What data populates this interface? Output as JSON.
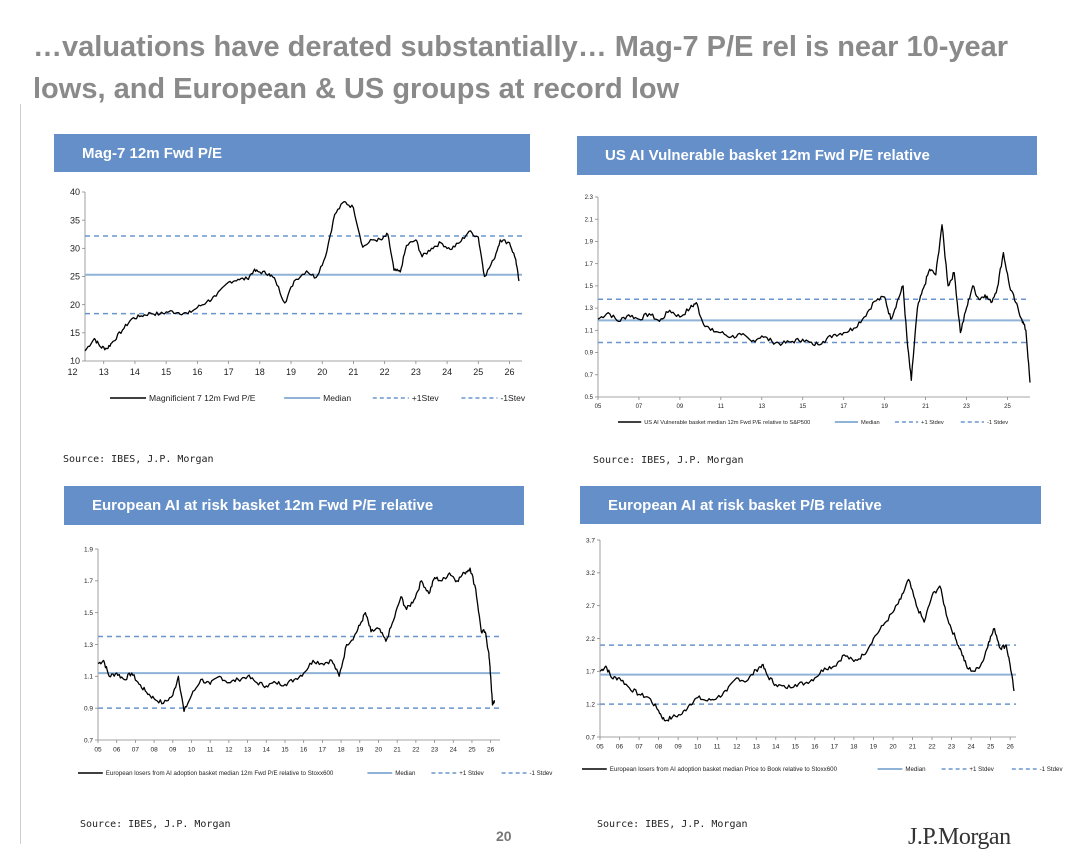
{
  "page": {
    "title": "…valuations have derated substantially… Mag-7 P/E rel is near 10-year lows, and European & US groups at record low",
    "page_number": "20",
    "logo": "J.P.Morgan"
  },
  "colors": {
    "header_bg": "#658fc8",
    "median": "#8fb3d6",
    "stdev": "#6a95cc",
    "line": "#000000"
  },
  "chart_data": [
    {
      "id": "c1",
      "type": "line",
      "header": "Mag-7 12m Fwd P/E",
      "source": "Source: IBES, J.P. Morgan",
      "xlim": [
        12.4,
        26.4
      ],
      "ylim": [
        10,
        40
      ],
      "xticks": [
        12,
        13,
        14,
        15,
        16,
        17,
        18,
        19,
        20,
        21,
        22,
        23,
        24,
        25,
        26
      ],
      "xtick_labels": [
        "12",
        "13",
        "14",
        "15",
        "16",
        "17",
        "18",
        "19",
        "20",
        "21",
        "22",
        "23",
        "24",
        "25",
        "26"
      ],
      "yticks": [
        10,
        15,
        20,
        25,
        30,
        35,
        40
      ],
      "ytick_labels": [
        "10",
        "15",
        "20",
        "25",
        "30",
        "35",
        "40"
      ],
      "median": 25.3,
      "plus1": 32.2,
      "minus1": 18.4,
      "legend": [
        "Magnificient 7 12m Fwd P/E",
        "Median",
        "+1Stev",
        "-1Stev"
      ],
      "series": [
        [
          12.4,
          11.8
        ],
        [
          12.7,
          14
        ],
        [
          12.9,
          12.5
        ],
        [
          13.1,
          12.2
        ],
        [
          13.3,
          13.5
        ],
        [
          13.6,
          15.5
        ],
        [
          13.9,
          17.5
        ],
        [
          14.2,
          18
        ],
        [
          14.5,
          18.5
        ],
        [
          14.8,
          18.3
        ],
        [
          15.1,
          18.8
        ],
        [
          15.4,
          18.6
        ],
        [
          15.7,
          18.4
        ],
        [
          16.0,
          19.5
        ],
        [
          16.3,
          20.5
        ],
        [
          16.6,
          21.5
        ],
        [
          17.0,
          24
        ],
        [
          17.3,
          24.5
        ],
        [
          17.6,
          24.6
        ],
        [
          17.8,
          26
        ],
        [
          18.0,
          25.8
        ],
        [
          18.3,
          25.5
        ],
        [
          18.5,
          24.3
        ],
        [
          18.8,
          20.3
        ],
        [
          19.1,
          24.2
        ],
        [
          19.5,
          26
        ],
        [
          19.8,
          24.8
        ],
        [
          20.1,
          28.5
        ],
        [
          20.4,
          36
        ],
        [
          20.7,
          38.3
        ],
        [
          21.0,
          37.2
        ],
        [
          21.3,
          30.2
        ],
        [
          21.6,
          31.5
        ],
        [
          21.9,
          31.5
        ],
        [
          22.1,
          32.5
        ],
        [
          22.3,
          26.1
        ],
        [
          22.5,
          25.8
        ],
        [
          22.7,
          30.5
        ],
        [
          23.0,
          31.5
        ],
        [
          23.2,
          28.5
        ],
        [
          23.5,
          30
        ],
        [
          23.8,
          31
        ],
        [
          24.1,
          29.8
        ],
        [
          24.4,
          31
        ],
        [
          24.7,
          33
        ],
        [
          25.0,
          32
        ],
        [
          25.2,
          25
        ],
        [
          25.5,
          28
        ],
        [
          25.7,
          31.5
        ],
        [
          26.0,
          31
        ],
        [
          26.2,
          28
        ],
        [
          26.3,
          24.2
        ]
      ]
    },
    {
      "id": "c2",
      "type": "line",
      "header": "US AI Vulnerable basket 12m Fwd P/E relative",
      "source": "Source: IBES, J.P. Morgan",
      "xlim": [
        5,
        26.1
      ],
      "ylim": [
        0.5,
        2.3
      ],
      "xticks": [
        5,
        7,
        9,
        11,
        13,
        15,
        17,
        19,
        21,
        23,
        25
      ],
      "xtick_labels": [
        "05",
        "07",
        "09",
        "11",
        "13",
        "15",
        "17",
        "19",
        "21",
        "23",
        "25"
      ],
      "yticks": [
        0.5,
        0.7,
        0.9,
        1.1,
        1.3,
        1.5,
        1.7,
        1.9,
        2.1,
        2.3
      ],
      "ytick_labels": [
        "0.5",
        "0.7",
        "0.9",
        "1.1",
        "1.3",
        "1.5",
        "1.7",
        "1.9",
        "2.1",
        "2.3"
      ],
      "median": 1.19,
      "plus1": 1.38,
      "minus1": 0.99,
      "legend": [
        "US AI Vulnerable basket median 12m Fwd P/E relative to S&P500",
        "Median",
        "+1 Stdev",
        "-1 Stdev"
      ],
      "series": [
        [
          5.0,
          1.2
        ],
        [
          5.5,
          1.26
        ],
        [
          6.0,
          1.18
        ],
        [
          6.5,
          1.24
        ],
        [
          7.0,
          1.2
        ],
        [
          7.5,
          1.25
        ],
        [
          8.0,
          1.18
        ],
        [
          8.5,
          1.28
        ],
        [
          9.0,
          1.22
        ],
        [
          9.5,
          1.3
        ],
        [
          9.8,
          1.35
        ],
        [
          10.1,
          1.18
        ],
        [
          10.5,
          1.1
        ],
        [
          11.0,
          1.08
        ],
        [
          11.5,
          1.04
        ],
        [
          12.0,
          1.06
        ],
        [
          12.5,
          1.0
        ],
        [
          13.0,
          1.05
        ],
        [
          13.5,
          1.0
        ],
        [
          14.0,
          0.98
        ],
        [
          14.5,
          1.0
        ],
        [
          15.0,
          1.02
        ],
        [
          15.5,
          0.97
        ],
        [
          16.0,
          1.0
        ],
        [
          16.5,
          1.06
        ],
        [
          17.0,
          1.08
        ],
        [
          17.5,
          1.12
        ],
        [
          18.0,
          1.22
        ],
        [
          18.5,
          1.36
        ],
        [
          19.0,
          1.4
        ],
        [
          19.3,
          1.2
        ],
        [
          19.6,
          1.35
        ],
        [
          19.9,
          1.5
        ],
        [
          20.1,
          1.0
        ],
        [
          20.3,
          0.65
        ],
        [
          20.6,
          1.3
        ],
        [
          20.9,
          1.48
        ],
        [
          21.2,
          1.65
        ],
        [
          21.5,
          1.6
        ],
        [
          21.8,
          2.05
        ],
        [
          22.1,
          1.5
        ],
        [
          22.4,
          1.62
        ],
        [
          22.7,
          1.08
        ],
        [
          23.0,
          1.3
        ],
        [
          23.3,
          1.5
        ],
        [
          23.6,
          1.38
        ],
        [
          23.9,
          1.42
        ],
        [
          24.2,
          1.35
        ],
        [
          24.5,
          1.48
        ],
        [
          24.8,
          1.8
        ],
        [
          25.1,
          1.5
        ],
        [
          25.4,
          1.35
        ],
        [
          25.7,
          1.2
        ],
        [
          25.9,
          1.1
        ],
        [
          26.1,
          0.63
        ]
      ]
    },
    {
      "id": "c3",
      "type": "line",
      "header": "European AI at risk basket 12m Fwd P/E relative",
      "source": "Source: IBES, J.P. Morgan",
      "xlim": [
        5,
        26.5
      ],
      "ylim": [
        0.7,
        1.9
      ],
      "xticks": [
        5,
        6,
        7,
        8,
        9,
        10,
        11,
        12,
        13,
        14,
        15,
        16,
        17,
        18,
        19,
        20,
        21,
        22,
        23,
        24,
        25,
        26
      ],
      "xtick_labels": [
        "05",
        "06",
        "07",
        "08",
        "09",
        "10",
        "11",
        "12",
        "13",
        "14",
        "15",
        "16",
        "17",
        "18",
        "19",
        "20",
        "21",
        "22",
        "23",
        "24",
        "25",
        "26"
      ],
      "yticks": [
        0.7,
        0.9,
        1.1,
        1.3,
        1.5,
        1.7,
        1.9
      ],
      "ytick_labels": [
        "0.7",
        "0.9",
        "1.1",
        "1.3",
        "1.5",
        "1.7",
        "1.9"
      ],
      "median": 1.12,
      "plus1": 1.35,
      "minus1": 0.9,
      "legend": [
        "European losers from AI adoption basket median 12m Fwd P/E relative to Stoxx600",
        "Median",
        "+1 Stdev",
        "-1 Stdev"
      ],
      "series": [
        [
          5.0,
          1.18
        ],
        [
          5.3,
          1.2
        ],
        [
          5.6,
          1.1
        ],
        [
          6.0,
          1.12
        ],
        [
          6.4,
          1.08
        ],
        [
          6.8,
          1.12
        ],
        [
          7.2,
          1.05
        ],
        [
          7.6,
          1.0
        ],
        [
          8.0,
          0.96
        ],
        [
          8.5,
          0.93
        ],
        [
          9.0,
          0.98
        ],
        [
          9.3,
          1.1
        ],
        [
          9.6,
          0.88
        ],
        [
          10.0,
          0.98
        ],
        [
          10.5,
          1.08
        ],
        [
          11.0,
          1.05
        ],
        [
          11.5,
          1.1
        ],
        [
          12.0,
          1.06
        ],
        [
          12.5,
          1.08
        ],
        [
          13.0,
          1.1
        ],
        [
          13.5,
          1.06
        ],
        [
          14.0,
          1.04
        ],
        [
          14.5,
          1.06
        ],
        [
          15.0,
          1.05
        ],
        [
          15.5,
          1.08
        ],
        [
          16.0,
          1.12
        ],
        [
          16.5,
          1.2
        ],
        [
          17.0,
          1.18
        ],
        [
          17.5,
          1.2
        ],
        [
          17.9,
          1.1
        ],
        [
          18.3,
          1.3
        ],
        [
          18.7,
          1.35
        ],
        [
          19.0,
          1.42
        ],
        [
          19.3,
          1.5
        ],
        [
          19.6,
          1.38
        ],
        [
          20.0,
          1.4
        ],
        [
          20.4,
          1.32
        ],
        [
          20.8,
          1.45
        ],
        [
          21.2,
          1.6
        ],
        [
          21.5,
          1.52
        ],
        [
          21.9,
          1.58
        ],
        [
          22.3,
          1.7
        ],
        [
          22.7,
          1.62
        ],
        [
          23.0,
          1.72
        ],
        [
          23.4,
          1.7
        ],
        [
          23.8,
          1.75
        ],
        [
          24.2,
          1.7
        ],
        [
          24.6,
          1.75
        ],
        [
          24.9,
          1.78
        ],
        [
          25.2,
          1.65
        ],
        [
          25.5,
          1.38
        ],
        [
          25.7,
          1.38
        ],
        [
          25.9,
          1.25
        ],
        [
          26.0,
          1.1
        ],
        [
          26.1,
          0.92
        ],
        [
          26.2,
          0.95
        ]
      ]
    },
    {
      "id": "c4",
      "type": "line",
      "header": "European AI at risk basket P/B relative",
      "source": "Source: IBES, J.P. Morgan",
      "xlim": [
        5,
        26.3
      ],
      "ylim": [
        0.7,
        3.7
      ],
      "xticks": [
        5,
        6,
        7,
        8,
        9,
        10,
        11,
        12,
        13,
        14,
        15,
        16,
        17,
        18,
        19,
        20,
        21,
        22,
        23,
        24,
        25,
        26
      ],
      "xtick_labels": [
        "05",
        "06",
        "07",
        "08",
        "09",
        "10",
        "11",
        "12",
        "13",
        "14",
        "15",
        "16",
        "17",
        "18",
        "19",
        "20",
        "21",
        "22",
        "23",
        "24",
        "25",
        "26"
      ],
      "yticks": [
        0.7,
        1.2,
        1.7,
        2.2,
        2.7,
        3.2,
        3.7
      ],
      "ytick_labels": [
        "0.7",
        "1.2",
        "1.7",
        "2.2",
        "2.7",
        "3.2",
        "3.7"
      ],
      "median": 1.65,
      "plus1": 2.1,
      "minus1": 1.2,
      "legend": [
        "European losers from AI adoption basket median Price to Book relative to Stoxx600",
        "Median",
        "+1 Stdev",
        "-1 Stdev"
      ],
      "series": [
        [
          5.0,
          1.7
        ],
        [
          5.3,
          1.78
        ],
        [
          5.6,
          1.6
        ],
        [
          6.0,
          1.6
        ],
        [
          6.5,
          1.45
        ],
        [
          7.0,
          1.35
        ],
        [
          7.5,
          1.3
        ],
        [
          8.0,
          1.1
        ],
        [
          8.3,
          0.95
        ],
        [
          8.7,
          1.0
        ],
        [
          9.2,
          1.05
        ],
        [
          9.6,
          1.2
        ],
        [
          10.0,
          1.3
        ],
        [
          10.5,
          1.25
        ],
        [
          11.0,
          1.3
        ],
        [
          11.5,
          1.4
        ],
        [
          12.0,
          1.6
        ],
        [
          12.5,
          1.55
        ],
        [
          13.0,
          1.72
        ],
        [
          13.3,
          1.8
        ],
        [
          13.6,
          1.62
        ],
        [
          14.0,
          1.5
        ],
        [
          14.5,
          1.45
        ],
        [
          15.0,
          1.5
        ],
        [
          15.5,
          1.52
        ],
        [
          16.0,
          1.6
        ],
        [
          16.5,
          1.75
        ],
        [
          17.0,
          1.78
        ],
        [
          17.5,
          1.95
        ],
        [
          18.0,
          1.85
        ],
        [
          18.5,
          1.95
        ],
        [
          19.0,
          2.2
        ],
        [
          19.5,
          2.4
        ],
        [
          20.0,
          2.6
        ],
        [
          20.4,
          2.8
        ],
        [
          20.8,
          3.1
        ],
        [
          21.2,
          2.7
        ],
        [
          21.6,
          2.45
        ],
        [
          22.0,
          2.85
        ],
        [
          22.4,
          3.0
        ],
        [
          22.8,
          2.5
        ],
        [
          23.2,
          2.2
        ],
        [
          23.5,
          2.0
        ],
        [
          23.8,
          1.75
        ],
        [
          24.2,
          1.7
        ],
        [
          24.6,
          1.85
        ],
        [
          24.9,
          2.15
        ],
        [
          25.2,
          2.35
        ],
        [
          25.5,
          2.05
        ],
        [
          25.8,
          2.1
        ],
        [
          26.0,
          1.8
        ],
        [
          26.2,
          1.4
        ]
      ]
    }
  ]
}
